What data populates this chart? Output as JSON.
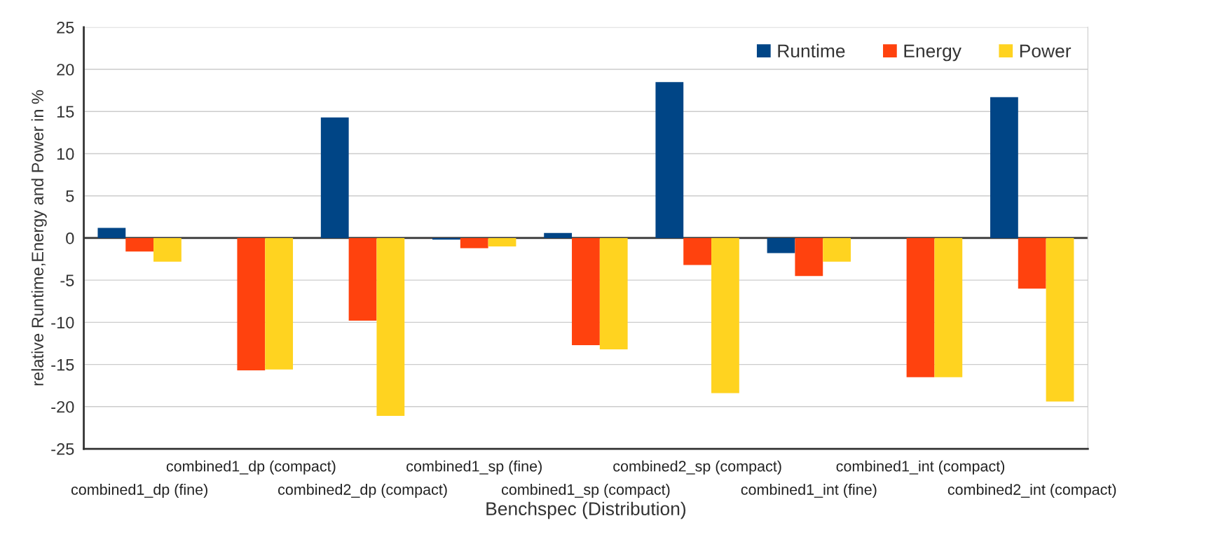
{
  "chart_data": {
    "type": "bar",
    "xlabel": "Benchspec (Distribution)",
    "ylabel": "relative Runtime,Energy and Power in %",
    "categories": [
      "combined1_dp (fine)",
      "combined1_dp (compact)",
      "combined2_dp (compact)",
      "combined1_sp (fine)",
      "combined1_sp (compact)",
      "combined2_sp (compact)",
      "combined1_int (fine)",
      "combined1_int (compact)",
      "combined2_int (compact)"
    ],
    "series": [
      {
        "name": "Runtime",
        "color": "#004586",
        "values": [
          1.2,
          0,
          14.3,
          -0.2,
          0.6,
          18.5,
          -1.8,
          0,
          16.7
        ]
      },
      {
        "name": "Energy",
        "color": "#ff420e",
        "values": [
          -1.6,
          -15.7,
          -9.8,
          -1.2,
          -12.7,
          -3.2,
          -4.5,
          -16.5,
          -6.0
        ]
      },
      {
        "name": "Power",
        "color": "#ffd320",
        "values": [
          -2.8,
          -15.6,
          -21.1,
          -1.0,
          -13.2,
          -18.4,
          -2.8,
          -16.5,
          -19.4
        ]
      }
    ],
    "ylim": [
      -25,
      25
    ],
    "yticks": [
      -25,
      -20,
      -15,
      -10,
      -5,
      0,
      5,
      10,
      15,
      20,
      25
    ],
    "grid": "y",
    "legend": "top right"
  }
}
